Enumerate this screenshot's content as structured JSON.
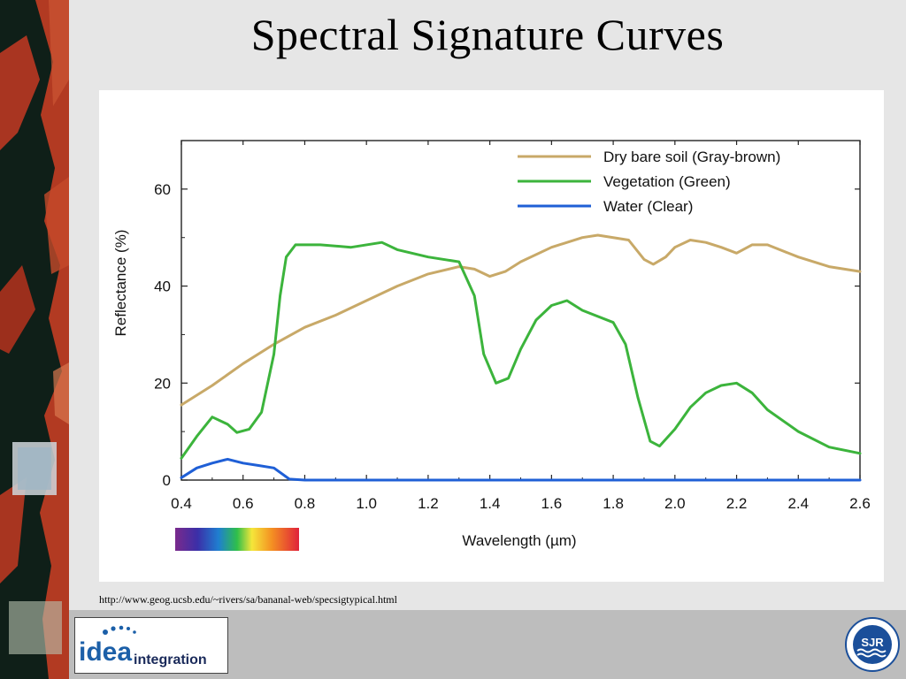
{
  "slide": {
    "title": "Spectral Signature Curves",
    "source_url": "http://www.geog.ucsb.edu/~rivers/sa/bananal-web/specsigtypical.html"
  },
  "logos": {
    "left_word_1": "idea",
    "left_word_2": "integration",
    "right_seal": "SJR"
  },
  "chart_data": {
    "type": "line",
    "xlabel": "Wavelength (µm)",
    "ylabel": "Reflectance (%)",
    "xlim": [
      0.4,
      2.6
    ],
    "ylim": [
      0,
      70
    ],
    "xticks": [
      "0.4",
      "0.6",
      "0.8",
      "1.0",
      "1.2",
      "1.4",
      "1.6",
      "1.8",
      "2.0",
      "2.2",
      "2.4",
      "2.6"
    ],
    "yticks": [
      "0",
      "20",
      "40",
      "60"
    ],
    "legend_position": "top-right",
    "series": [
      {
        "name": "Dry bare soil (Gray-brown)",
        "color": "#c8a968",
        "points": [
          [
            0.4,
            15.5
          ],
          [
            0.5,
            19.5
          ],
          [
            0.6,
            24
          ],
          [
            0.7,
            28
          ],
          [
            0.8,
            31.5
          ],
          [
            0.9,
            34
          ],
          [
            1.0,
            37
          ],
          [
            1.1,
            40
          ],
          [
            1.2,
            42.5
          ],
          [
            1.3,
            44
          ],
          [
            1.35,
            43.5
          ],
          [
            1.4,
            42
          ],
          [
            1.45,
            43
          ],
          [
            1.5,
            45
          ],
          [
            1.6,
            48
          ],
          [
            1.7,
            50
          ],
          [
            1.75,
            50.5
          ],
          [
            1.85,
            49.5
          ],
          [
            1.9,
            45.5
          ],
          [
            1.93,
            44.5
          ],
          [
            1.97,
            46
          ],
          [
            2.0,
            48
          ],
          [
            2.05,
            49.5
          ],
          [
            2.1,
            49
          ],
          [
            2.15,
            48
          ],
          [
            2.2,
            46.8
          ],
          [
            2.25,
            48.5
          ],
          [
            2.3,
            48.5
          ],
          [
            2.4,
            46
          ],
          [
            2.5,
            44
          ],
          [
            2.6,
            43
          ]
        ]
      },
      {
        "name": "Vegetation (Green)",
        "color": "#3cb43c",
        "points": [
          [
            0.4,
            4.5
          ],
          [
            0.45,
            9
          ],
          [
            0.5,
            13
          ],
          [
            0.55,
            11.5
          ],
          [
            0.58,
            9.8
          ],
          [
            0.62,
            10.5
          ],
          [
            0.66,
            14
          ],
          [
            0.7,
            26
          ],
          [
            0.72,
            38
          ],
          [
            0.74,
            46
          ],
          [
            0.77,
            48.5
          ],
          [
            0.85,
            48.5
          ],
          [
            0.95,
            48
          ],
          [
            1.05,
            49
          ],
          [
            1.1,
            47.5
          ],
          [
            1.2,
            46
          ],
          [
            1.3,
            45
          ],
          [
            1.35,
            38
          ],
          [
            1.38,
            26
          ],
          [
            1.42,
            20
          ],
          [
            1.46,
            21
          ],
          [
            1.5,
            27
          ],
          [
            1.55,
            33
          ],
          [
            1.6,
            36
          ],
          [
            1.65,
            37
          ],
          [
            1.7,
            35
          ],
          [
            1.8,
            32.5
          ],
          [
            1.84,
            28
          ],
          [
            1.88,
            17
          ],
          [
            1.92,
            8
          ],
          [
            1.95,
            7
          ],
          [
            2.0,
            10.5
          ],
          [
            2.05,
            15
          ],
          [
            2.1,
            18
          ],
          [
            2.15,
            19.5
          ],
          [
            2.2,
            20
          ],
          [
            2.25,
            18
          ],
          [
            2.3,
            14.5
          ],
          [
            2.4,
            10
          ],
          [
            2.5,
            6.8
          ],
          [
            2.6,
            5.5
          ]
        ]
      },
      {
        "name": "Water (Clear)",
        "color": "#1f5fd6",
        "points": [
          [
            0.4,
            0.5
          ],
          [
            0.45,
            2.5
          ],
          [
            0.5,
            3.5
          ],
          [
            0.55,
            4.3
          ],
          [
            0.6,
            3.5
          ],
          [
            0.65,
            3.0
          ],
          [
            0.7,
            2.5
          ],
          [
            0.75,
            0.2
          ],
          [
            0.8,
            0
          ],
          [
            1.2,
            0
          ],
          [
            2.6,
            0
          ]
        ]
      }
    ]
  }
}
